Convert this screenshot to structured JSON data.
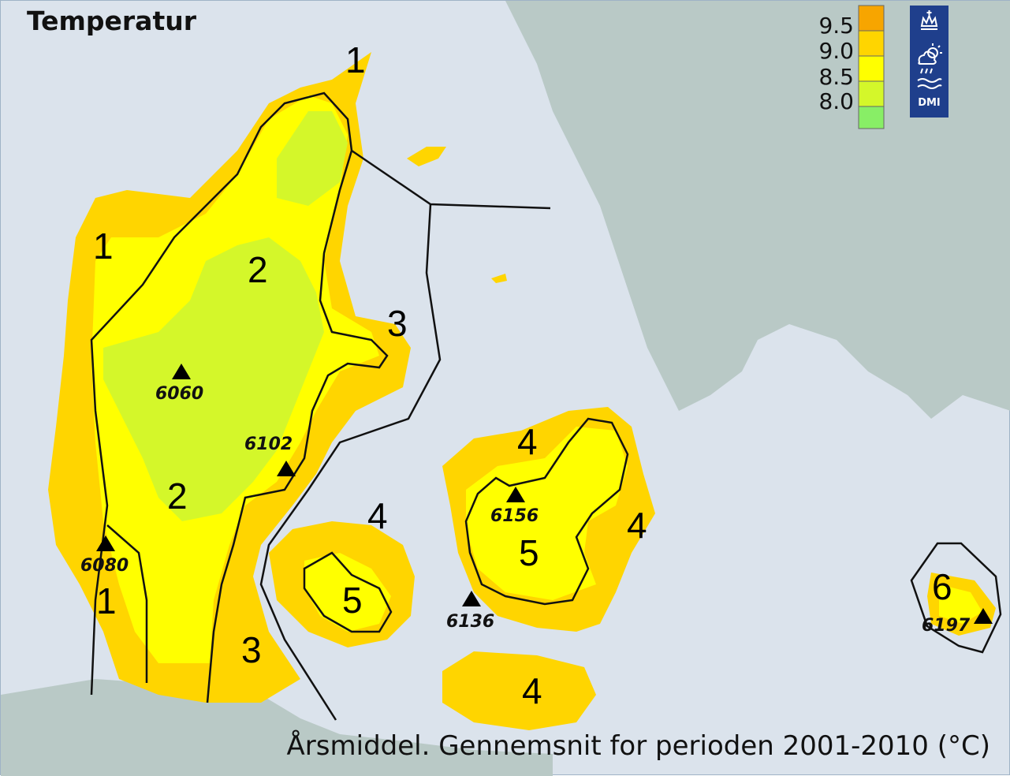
{
  "title": "Temperatur",
  "caption": "Årsmiddel. Gennemsnit for perioden 2001-2010 (°C)",
  "legend": {
    "labels": [
      "9.5",
      "9.0",
      "8.5",
      "8.0"
    ],
    "colors": [
      "#f7a500",
      "#ffd500",
      "#ffff00",
      "#d4f72a",
      "#88ee66"
    ]
  },
  "colors": {
    "sea": "#dbe3ec",
    "land_foreign": "#b9c9c6",
    "zone_line": "#111111",
    "dmi_blue": "#1f3f8c"
  },
  "logo": {
    "text": "DMI"
  },
  "zones": {
    "z1_north": "1",
    "z1_west": "1",
    "z1_southwest": "1",
    "z2_north": "2",
    "z2_south": "2",
    "z3_east": "3",
    "z3_south": "3",
    "z4_funen_north": "4",
    "z4_zealand_north": "4",
    "z4_zealand_east": "4",
    "z4_lolland": "4",
    "z5_funen": "5",
    "z5_zealand": "5",
    "z6_bornholm": "6"
  },
  "stations": {
    "s6060": "6060",
    "s6102": "6102",
    "s6080": "6080",
    "s6156": "6156",
    "s6136": "6136",
    "s6197": "6197"
  }
}
